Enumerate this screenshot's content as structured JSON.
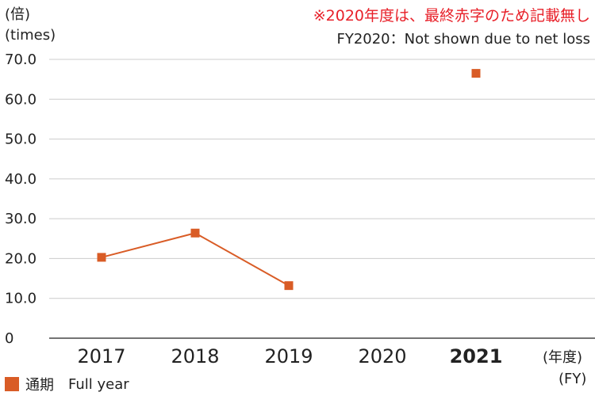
{
  "colors": {
    "series": "#d95c26",
    "note": "#e8212a",
    "grid": "#cccccc",
    "axis": "#222222"
  },
  "unit_label_ja": "(倍)",
  "unit_label_en": "(times)",
  "note_ja": "※2020年度は、最終赤字のため記載無し",
  "note_en": "FY2020：Not shown due to net loss",
  "fy_label_ja": "(年度)",
  "fy_label_en": "(FY)",
  "legend_ja": "通期",
  "legend_en": "Full year",
  "chart_data": {
    "type": "line",
    "categories": [
      "2017",
      "2018",
      "2019",
      "2020",
      "2021"
    ],
    "emphasized_category": "2021",
    "series": [
      {
        "name": "通期 Full year",
        "values": [
          20.3,
          26.4,
          13.2,
          null,
          66.5
        ]
      }
    ],
    "connected_segments": [
      [
        0,
        1
      ],
      [
        1,
        2
      ]
    ],
    "ylim": [
      0,
      70
    ],
    "yticks": [
      "0",
      "10.0",
      "20.0",
      "30.0",
      "40.0",
      "50.0",
      "60.0",
      "70.0"
    ],
    "grid": true,
    "legend_position": "bottom-left"
  }
}
